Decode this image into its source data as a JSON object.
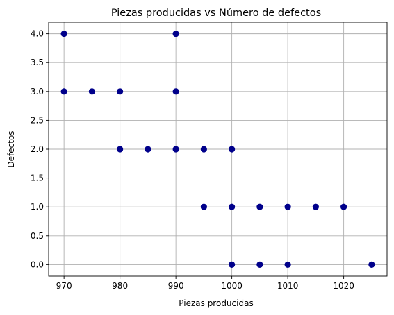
{
  "chart_data": {
    "type": "scatter",
    "title": "Piezas producidas vs Número de defectos",
    "xlabel": "Piezas producidas",
    "ylabel": "Defectos",
    "xlim": [
      967.25,
      1027.75
    ],
    "ylim": [
      -0.2,
      4.2
    ],
    "xticks": [
      970,
      980,
      990,
      1000,
      1010,
      1020
    ],
    "xtick_labels": [
      "970",
      "980",
      "990",
      "1000",
      "1010",
      "1020"
    ],
    "yticks": [
      0,
      0.5,
      1,
      1.5,
      2,
      2.5,
      3,
      3.5,
      4
    ],
    "ytick_labels": [
      "0.0",
      "0.5",
      "1.0",
      "1.5",
      "2.0",
      "2.5",
      "3.0",
      "3.5",
      "4.0"
    ],
    "grid": true,
    "marker_color": "#00008b",
    "points": [
      {
        "x": 970,
        "y": 4
      },
      {
        "x": 990,
        "y": 4
      },
      {
        "x": 970,
        "y": 3
      },
      {
        "x": 975,
        "y": 3
      },
      {
        "x": 980,
        "y": 3
      },
      {
        "x": 990,
        "y": 3
      },
      {
        "x": 980,
        "y": 2
      },
      {
        "x": 985,
        "y": 2
      },
      {
        "x": 990,
        "y": 2
      },
      {
        "x": 995,
        "y": 2
      },
      {
        "x": 1000,
        "y": 2
      },
      {
        "x": 995,
        "y": 1
      },
      {
        "x": 1000,
        "y": 1
      },
      {
        "x": 1005,
        "y": 1
      },
      {
        "x": 1010,
        "y": 1
      },
      {
        "x": 1015,
        "y": 1
      },
      {
        "x": 1020,
        "y": 1
      },
      {
        "x": 1000,
        "y": 0
      },
      {
        "x": 1005,
        "y": 0
      },
      {
        "x": 1010,
        "y": 0
      },
      {
        "x": 1025,
        "y": 0
      }
    ]
  }
}
